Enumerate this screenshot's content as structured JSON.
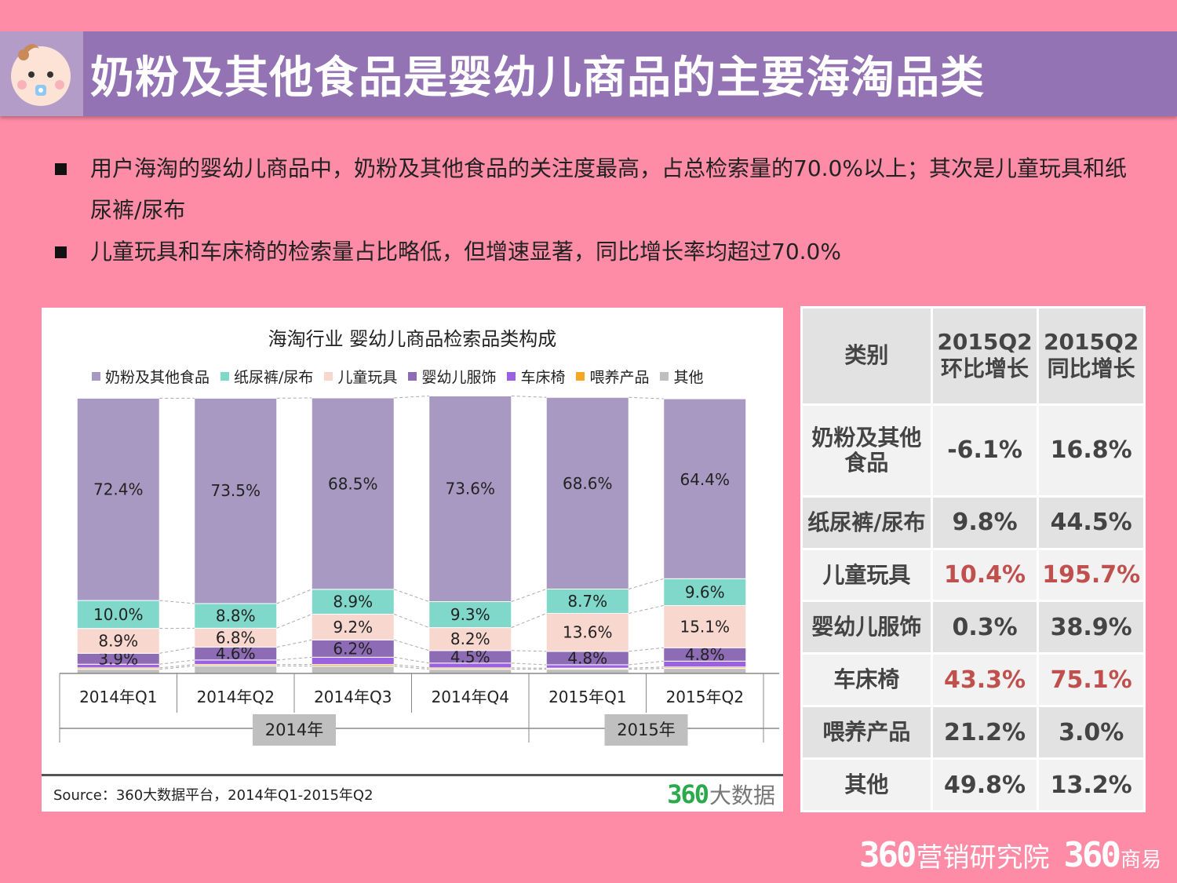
{
  "title": "奶粉及其他食品是婴幼儿商品的主要海淘品类",
  "bullets": [
    "用户海淘的婴幼儿商品中，奶粉及其他食品的关注度最高，占总检索量的70.0%以上；其次是儿童玩具和纸尿裤/尿布",
    "儿童玩具和车床椅的检索量占比略低，但增速显著，同比增长率均超过70.0%"
  ],
  "chart_data": {
    "type": "bar",
    "stacked": true,
    "title": "海淘行业 婴幼儿商品检索品类构成",
    "categories": [
      "2014年Q1",
      "2014年Q2",
      "2014年Q3",
      "2014年Q4",
      "2015年Q1",
      "2015年Q2"
    ],
    "groups": [
      {
        "label": "2014年",
        "categories": [
          "2014年Q1",
          "2014年Q2",
          "2014年Q3",
          "2014年Q4"
        ]
      },
      {
        "label": "2015年",
        "categories": [
          "2015年Q1",
          "2015年Q2"
        ]
      }
    ],
    "series": [
      {
        "name": "其他",
        "color": "#BFBFBF",
        "values": [
          1.5,
          2.7,
          2.6,
          1.5,
          1.5,
          1.8
        ]
      },
      {
        "name": "喂养产品",
        "color": "#F5A623",
        "values": [
          0.5,
          0.5,
          0.6,
          0.5,
          0.4,
          0.5
        ]
      },
      {
        "name": "车床椅",
        "color": "#9A61E0",
        "values": [
          1.3,
          1.6,
          2.6,
          1.7,
          1.2,
          2.1
        ]
      },
      {
        "name": "婴幼儿服饰",
        "color": "#8E6BB5",
        "values": [
          3.9,
          4.6,
          6.2,
          4.5,
          4.8,
          4.8
        ]
      },
      {
        "name": "儿童玩具",
        "color": "#F8D7CF",
        "values": [
          8.9,
          6.8,
          9.2,
          8.2,
          13.6,
          15.1
        ]
      },
      {
        "name": "纸尿裤/尿布",
        "color": "#7FD8C9",
        "values": [
          10.0,
          8.8,
          8.9,
          9.3,
          8.7,
          9.6
        ]
      },
      {
        "name": "奶粉及其他食品",
        "color": "#A899C2",
        "values": [
          72.4,
          73.5,
          68.5,
          73.6,
          68.6,
          64.4
        ]
      }
    ],
    "legend_order": [
      "奶粉及其他食品",
      "纸尿裤/尿布",
      "儿童玩具",
      "婴幼儿服饰",
      "车床椅",
      "喂养产品",
      "其他"
    ],
    "labeled_series": [
      "奶粉及其他食品",
      "纸尿裤/尿布",
      "儿童玩具",
      "婴幼儿服饰"
    ],
    "ylim": [
      0,
      100
    ]
  },
  "source": "Source：360大数据平台，2014年Q1-2015年Q2",
  "chart_brand": {
    "num": "360",
    "text": "大数据"
  },
  "table": {
    "headers": [
      "类别",
      "2015Q2环比增长",
      "2015Q2同比增长"
    ],
    "header_lines": [
      [
        "类别"
      ],
      [
        "2015Q2",
        "环比增长"
      ],
      [
        "2015Q2",
        "同比增长"
      ]
    ],
    "rows": [
      {
        "category": "奶粉及其他食品",
        "cat_lines": [
          "奶粉及其他",
          "食品"
        ],
        "qoq": "-6.1%",
        "yoy": "16.8%",
        "highlight": false
      },
      {
        "category": "纸尿裤/尿布",
        "cat_lines": [
          "纸尿裤/尿布"
        ],
        "qoq": "9.8%",
        "yoy": "44.5%",
        "highlight": false
      },
      {
        "category": "儿童玩具",
        "cat_lines": [
          "儿童玩具"
        ],
        "qoq": "10.4%",
        "yoy": "195.7%",
        "highlight": true
      },
      {
        "category": "婴幼儿服饰",
        "cat_lines": [
          "婴幼儿服饰"
        ],
        "qoq": "0.3%",
        "yoy": "38.9%",
        "highlight": false
      },
      {
        "category": "车床椅",
        "cat_lines": [
          "车床椅"
        ],
        "qoq": "43.3%",
        "yoy": "75.1%",
        "highlight": true
      },
      {
        "category": "喂养产品",
        "cat_lines": [
          "喂养产品"
        ],
        "qoq": "21.2%",
        "yoy": "3.0%",
        "highlight": false
      },
      {
        "category": "其他",
        "cat_lines": [
          "其他"
        ],
        "qoq": "49.8%",
        "yoy": "13.2%",
        "highlight": false
      }
    ]
  },
  "footer": {
    "brand1_num": "360",
    "brand1_text": "营销研究院",
    "brand2_num": "360",
    "brand2_text": "商易"
  }
}
